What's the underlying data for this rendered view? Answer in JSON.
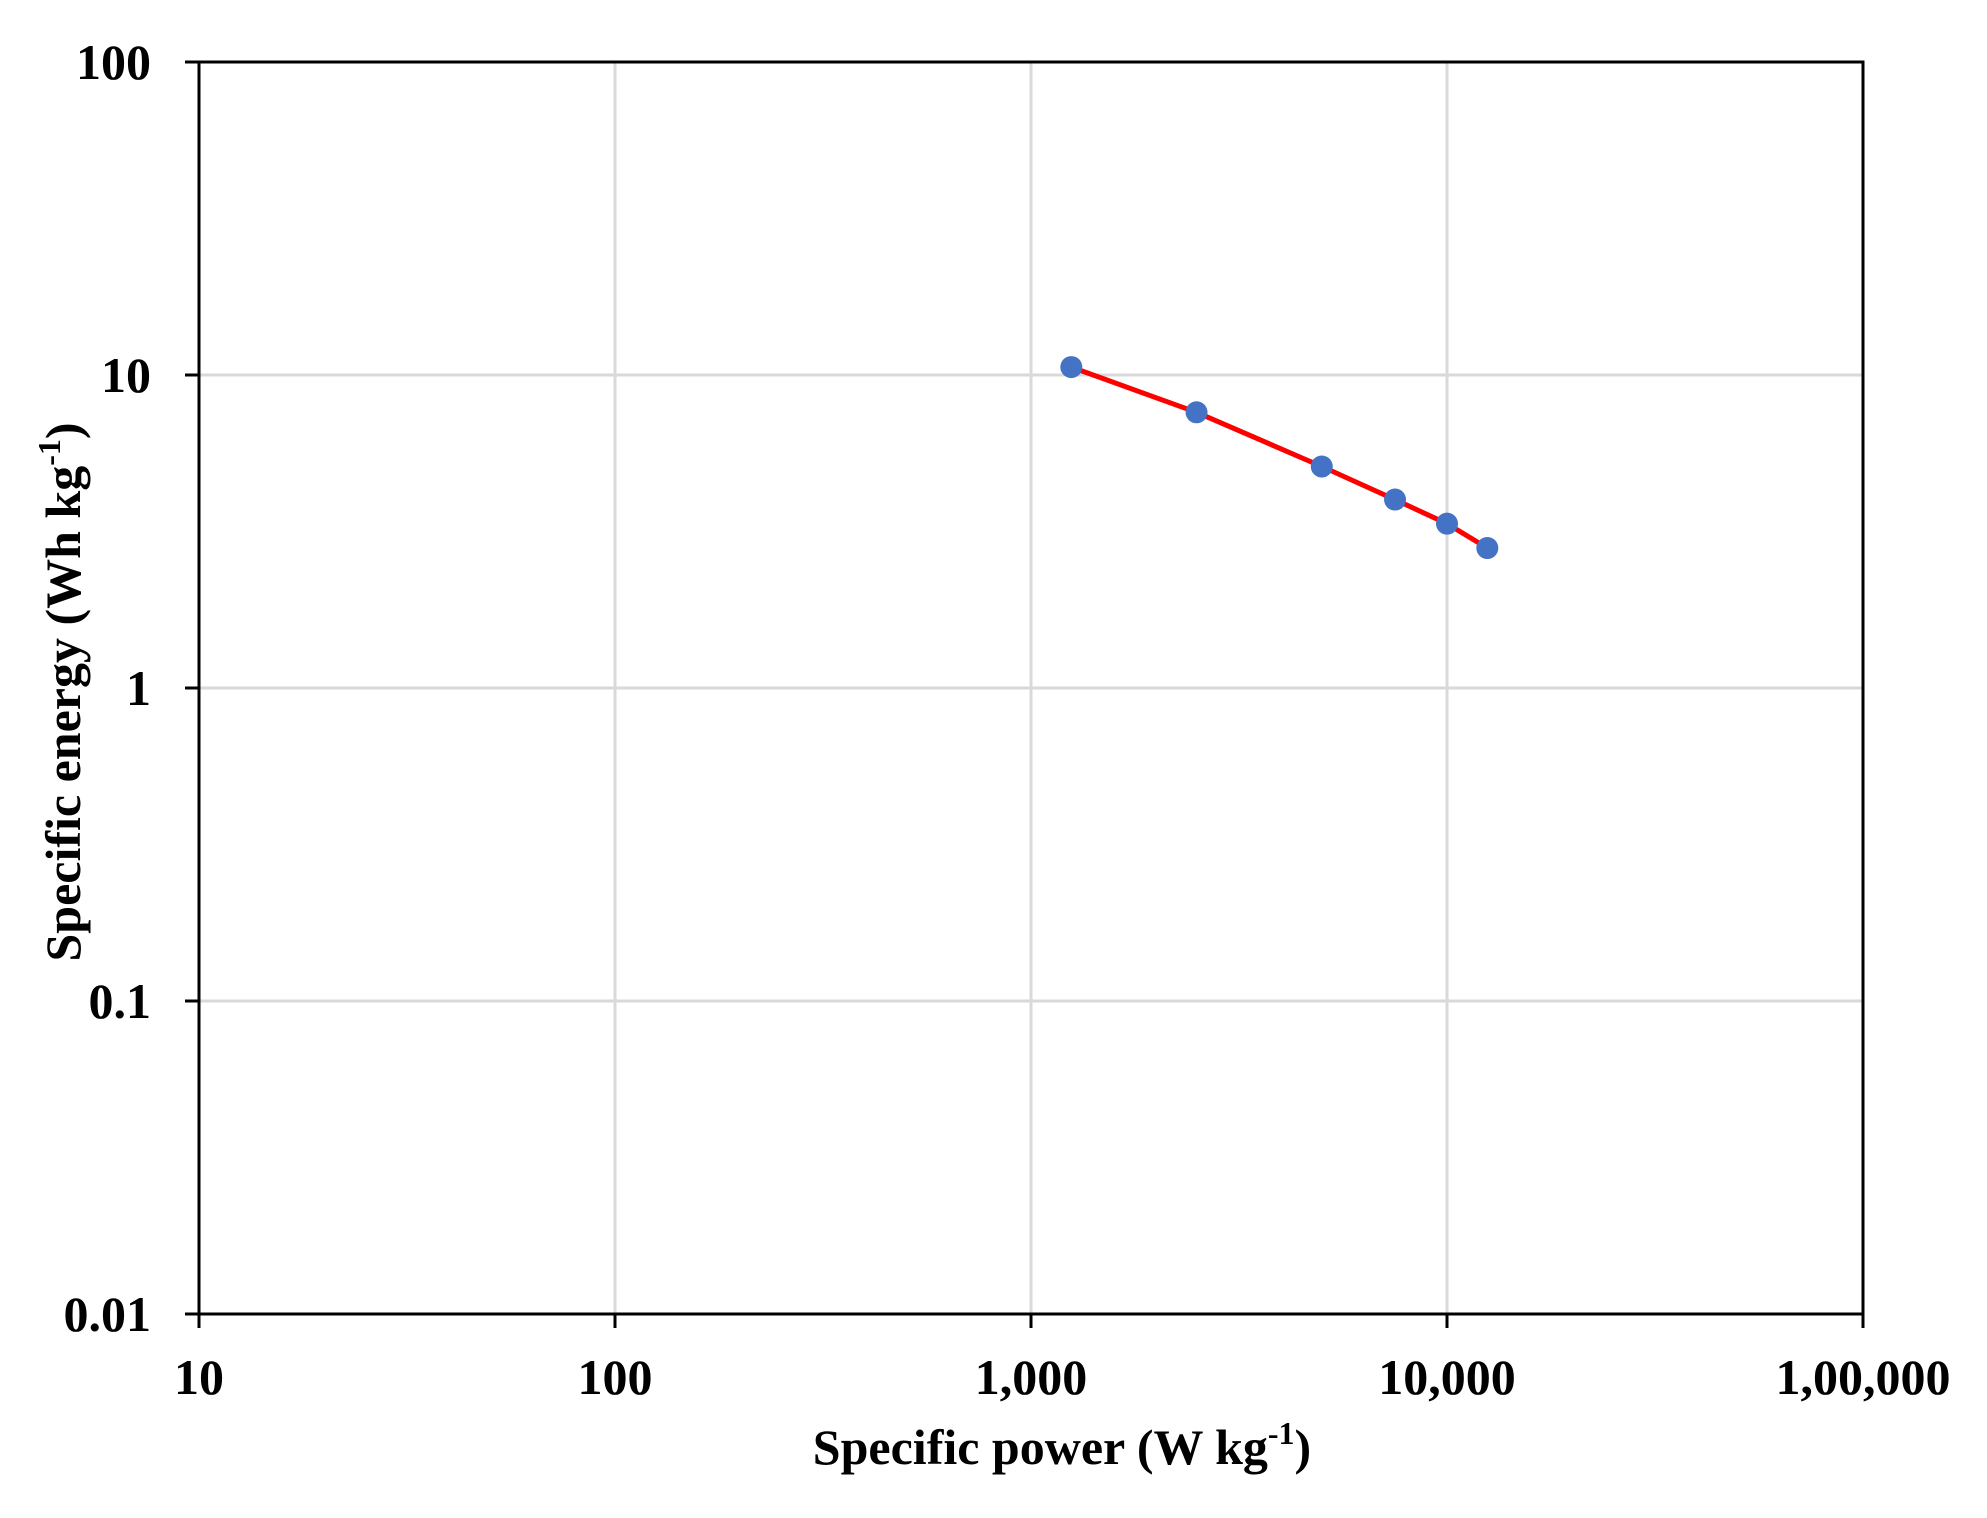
{
  "chart_data": {
    "type": "scatter",
    "title": "",
    "xlabel": {
      "main": "Specific power  (W kg",
      "sup": "-1",
      "close": ")"
    },
    "ylabel": {
      "main": "Specific energy (Wh kg",
      "sup": "-1",
      "close": ")"
    },
    "xscale": "log",
    "yscale": "log",
    "xlim": [
      10,
      100000
    ],
    "ylim": [
      0.01,
      100
    ],
    "x_ticks": [
      {
        "value": 10,
        "label": "10"
      },
      {
        "value": 100,
        "label": "100"
      },
      {
        "value": 1000,
        "label": "1,000"
      },
      {
        "value": 10000,
        "label": "10,000"
      },
      {
        "value": 100000,
        "label": "1,00,000"
      }
    ],
    "y_ticks": [
      {
        "value": 0.01,
        "label": "0.01"
      },
      {
        "value": 0.1,
        "label": "0.1"
      },
      {
        "value": 1,
        "label": "1"
      },
      {
        "value": 10,
        "label": "10"
      },
      {
        "value": 100,
        "label": "100"
      }
    ],
    "grid": true,
    "legend": "none",
    "series": [
      {
        "name": "",
        "marker_color": "#4472C4",
        "line_color": "#FF0000",
        "x": [
          1250,
          2500,
          5000,
          7500,
          10000,
          12500
        ],
        "y": [
          10.6,
          7.6,
          5.1,
          4.0,
          3.35,
          2.8
        ]
      }
    ]
  }
}
